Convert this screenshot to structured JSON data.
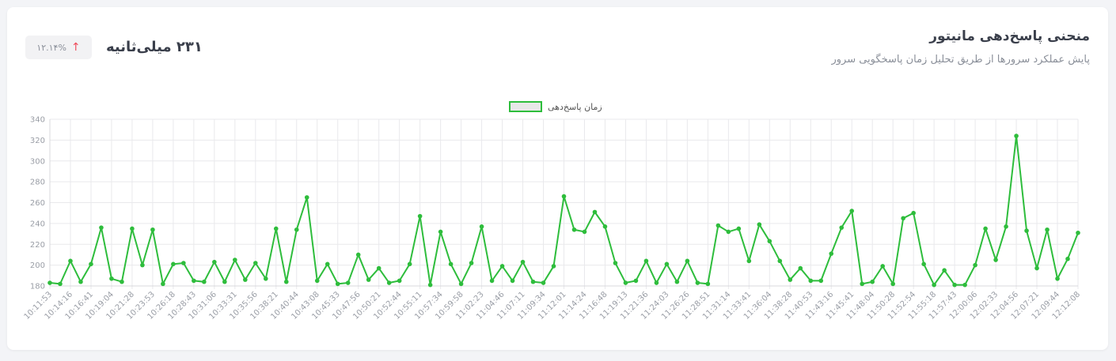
{
  "header": {
    "title": "منحنی پاسخ‌دهی مانیتور",
    "subtitle": "پایش عملکرد سرورها از طریق تحلیل زمان پاسخگویی سرور",
    "current_value": "۲۳۱ میلی‌ثانیه",
    "change_label": "۱۲.۱۴%",
    "change_icon": "arrow-up-icon"
  },
  "colors": {
    "line": "#2ebd3c",
    "accent_red": "#ef4b5a",
    "grid": "#e9e9ec"
  },
  "chart_data": {
    "type": "line",
    "legend_position": "top-center",
    "grid": true,
    "ylim": [
      180,
      340
    ],
    "yticks": [
      180,
      200,
      220,
      240,
      260,
      280,
      300,
      320,
      340
    ],
    "x": [
      "10:11:53",
      "",
      "10:14:16",
      "",
      "10:16:41",
      "",
      "10:19:04",
      "",
      "10:21:28",
      "",
      "10:23:53",
      "",
      "10:26:18",
      "",
      "10:28:43",
      "",
      "10:31:06",
      "",
      "10:33:31",
      "",
      "10:35:56",
      "",
      "10:38:21",
      "",
      "10:40:44",
      "",
      "10:43:08",
      "",
      "10:45:33",
      "",
      "10:47:56",
      "",
      "10:50:21",
      "",
      "10:52:44",
      "",
      "10:55:11",
      "",
      "10:57:34",
      "",
      "10:59:58",
      "",
      "11:02:23",
      "",
      "11:04:46",
      "",
      "11:07:11",
      "",
      "11:09:34",
      "",
      "11:12:01",
      "",
      "11:14:24",
      "",
      "11:16:48",
      "",
      "11:19:13",
      "",
      "11:21:36",
      "",
      "11:24:03",
      "",
      "11:26:26",
      "",
      "11:28:51",
      "",
      "11:31:14",
      "",
      "11:33:41",
      "",
      "11:36:04",
      "",
      "11:38:28",
      "",
      "11:40:53",
      "",
      "11:43:16",
      "",
      "11:45:41",
      "",
      "11:48:04",
      "",
      "11:50:28",
      "",
      "11:52:54",
      "",
      "11:55:18",
      "",
      "11:57:43",
      "",
      "12:00:06",
      "",
      "12:02:33",
      "",
      "12:04:56",
      "",
      "12:07:21",
      "",
      "12:09:44",
      "",
      "12:12:08"
    ],
    "series": [
      {
        "name": "زمان پاسخ‌دهی",
        "values": [
          183,
          182,
          204,
          184,
          201,
          236,
          187,
          184,
          235,
          200,
          234,
          182,
          201,
          202,
          185,
          184,
          203,
          184,
          205,
          186,
          202,
          187,
          235,
          184,
          234,
          265,
          185,
          201,
          182,
          183,
          210,
          186,
          197,
          183,
          185,
          201,
          247,
          181,
          232,
          201,
          182,
          202,
          237,
          185,
          199,
          185,
          203,
          184,
          183,
          199,
          266,
          234,
          232,
          251,
          237,
          202,
          183,
          185,
          204,
          183,
          201,
          184,
          204,
          183,
          182,
          238,
          232,
          235,
          204,
          239,
          223,
          204,
          186,
          197,
          185,
          185,
          211,
          236,
          252,
          182,
          184,
          199,
          182,
          245,
          250,
          201,
          181,
          195,
          181,
          181,
          200,
          235,
          205,
          237,
          324,
          233,
          197,
          234,
          187,
          206,
          231
        ]
      }
    ]
  }
}
